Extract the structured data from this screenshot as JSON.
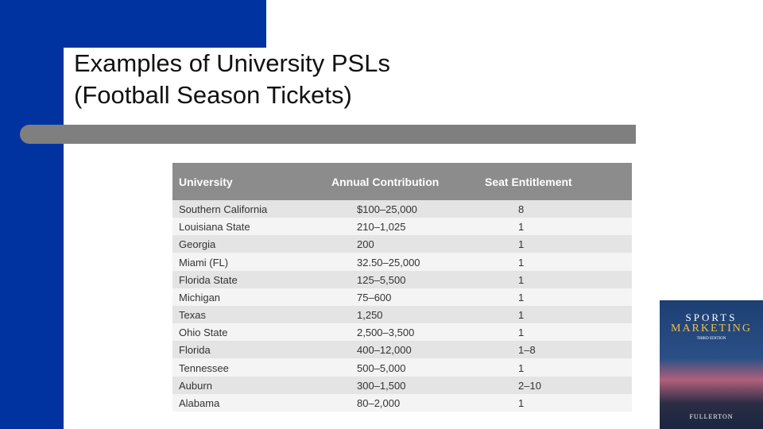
{
  "slide": {
    "title": [
      "Examples of University PSLs",
      "(Football Season Tickets)"
    ],
    "table": {
      "header": [
        "University",
        "Annual Contribution",
        "Seat Entitlement"
      ],
      "rows": [
        [
          "Southern California",
          "$100–25,000",
          "8"
        ],
        [
          "Louisiana State",
          "210–1,025",
          "1"
        ],
        [
          "Georgia",
          "200",
          "1"
        ],
        [
          "Miami (FL)",
          "32.50–25,000",
          "1"
        ],
        [
          "Florida State",
          "125–5,500",
          "1"
        ],
        [
          "Michigan",
          "75–600",
          "1"
        ],
        [
          "Texas",
          "1,250",
          "1"
        ],
        [
          "Ohio State",
          "2,500–3,500",
          "1"
        ],
        [
          "Florida",
          "400–12,000",
          "1–8"
        ],
        [
          "Tennessee",
          "500–5,000",
          "1"
        ],
        [
          "Auburn",
          "300–1,500",
          "2–10"
        ],
        [
          "Alabama",
          "80–2,000",
          "1"
        ]
      ]
    },
    "book": {
      "title": [
        "SPORTS",
        "MARKETING"
      ],
      "edition": "THIRD EDITION",
      "author": "FULLERTON"
    }
  }
}
